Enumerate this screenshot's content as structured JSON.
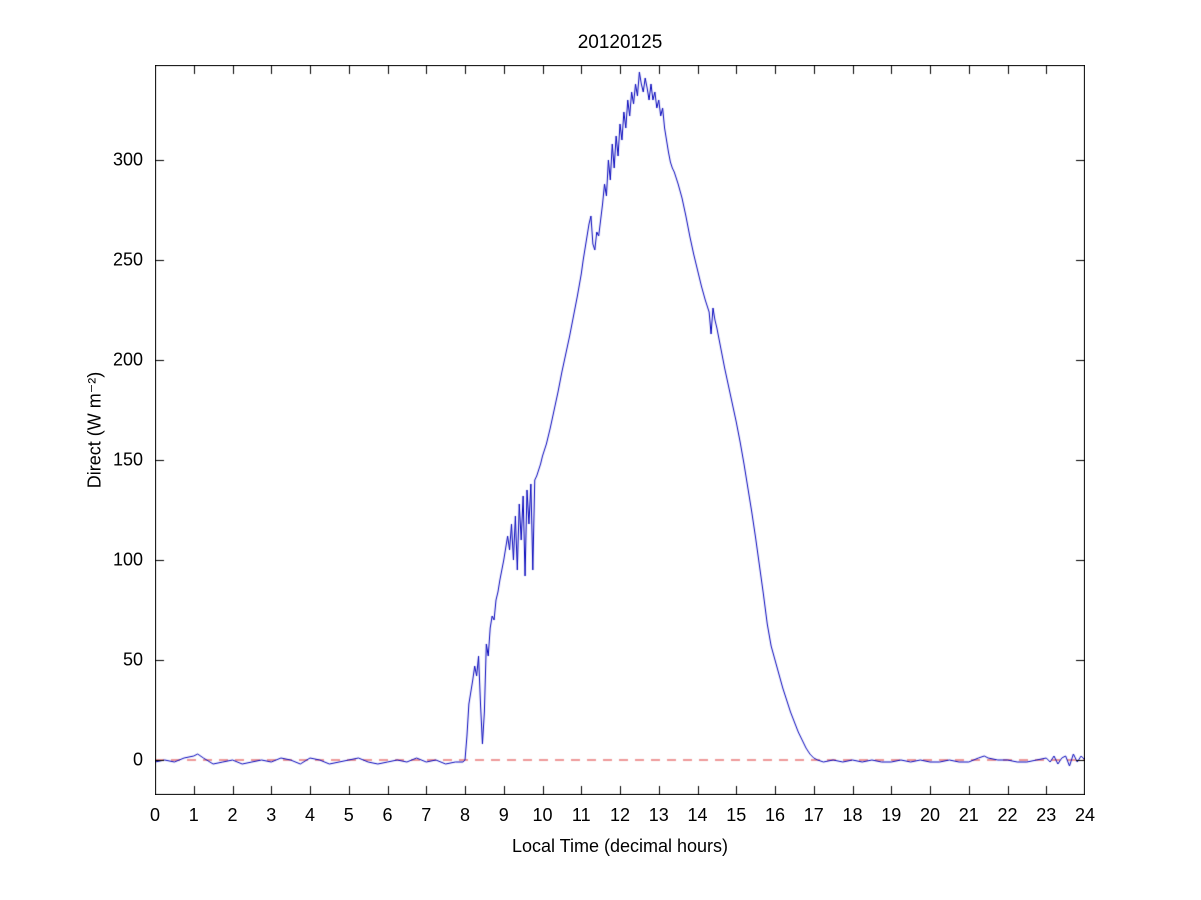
{
  "chart_data": {
    "type": "line",
    "title": "20120125",
    "xlabel": "Local Time (decimal hours)",
    "ylabel": "Direct (W m⁻²)",
    "xlim": [
      0,
      24
    ],
    "ylim": [
      -17.5,
      347.5
    ],
    "xticks": [
      0,
      1,
      2,
      3,
      4,
      5,
      6,
      7,
      8,
      9,
      10,
      11,
      12,
      13,
      14,
      15,
      16,
      17,
      18,
      19,
      20,
      21,
      22,
      23,
      24
    ],
    "yticks": [
      0,
      50,
      100,
      150,
      200,
      250,
      300
    ],
    "grid": false,
    "legend": "none",
    "background_color": "#ffffff",
    "axis_color": "#000000",
    "series": [
      {
        "name": "direct-irradiance",
        "color": "#0000bb",
        "line_style": "solid",
        "line_width": 1,
        "points": [
          [
            0,
            -1
          ],
          [
            0.25,
            0
          ],
          [
            0.5,
            -1
          ],
          [
            0.75,
            1
          ],
          [
            1,
            2
          ],
          [
            1.1,
            3
          ],
          [
            1.25,
            1
          ],
          [
            1.5,
            -2
          ],
          [
            1.75,
            -1
          ],
          [
            2,
            0
          ],
          [
            2.25,
            -2
          ],
          [
            2.5,
            -1
          ],
          [
            2.75,
            0
          ],
          [
            3,
            -1
          ],
          [
            3.25,
            1
          ],
          [
            3.5,
            0
          ],
          [
            3.75,
            -2
          ],
          [
            4,
            1
          ],
          [
            4.25,
            0
          ],
          [
            4.5,
            -2
          ],
          [
            4.75,
            -1
          ],
          [
            5,
            0
          ],
          [
            5.25,
            1
          ],
          [
            5.5,
            -1
          ],
          [
            5.75,
            -2
          ],
          [
            6,
            -1
          ],
          [
            6.25,
            0
          ],
          [
            6.5,
            -1
          ],
          [
            6.75,
            1
          ],
          [
            7,
            -1
          ],
          [
            7.25,
            0
          ],
          [
            7.5,
            -2
          ],
          [
            7.75,
            -1
          ],
          [
            7.95,
            -1
          ],
          [
            8.0,
            0
          ],
          [
            8.05,
            12
          ],
          [
            8.1,
            28
          ],
          [
            8.15,
            34
          ],
          [
            8.2,
            40
          ],
          [
            8.25,
            47
          ],
          [
            8.3,
            42
          ],
          [
            8.35,
            52
          ],
          [
            8.4,
            28
          ],
          [
            8.45,
            8
          ],
          [
            8.5,
            24
          ],
          [
            8.55,
            58
          ],
          [
            8.6,
            52
          ],
          [
            8.65,
            66
          ],
          [
            8.7,
            72
          ],
          [
            8.75,
            70
          ],
          [
            8.8,
            80
          ],
          [
            8.85,
            84
          ],
          [
            8.9,
            90
          ],
          [
            8.95,
            95
          ],
          [
            9,
            100
          ],
          [
            9.05,
            106
          ],
          [
            9.1,
            112
          ],
          [
            9.15,
            105
          ],
          [
            9.2,
            118
          ],
          [
            9.25,
            100
          ],
          [
            9.3,
            122
          ],
          [
            9.35,
            95
          ],
          [
            9.4,
            128
          ],
          [
            9.45,
            110
          ],
          [
            9.5,
            132
          ],
          [
            9.55,
            92
          ],
          [
            9.6,
            135
          ],
          [
            9.65,
            118
          ],
          [
            9.7,
            138
          ],
          [
            9.75,
            95
          ],
          [
            9.8,
            140
          ],
          [
            9.85,
            142
          ],
          [
            9.9,
            145
          ],
          [
            9.95,
            148
          ],
          [
            10,
            152
          ],
          [
            10.1,
            158
          ],
          [
            10.2,
            166
          ],
          [
            10.3,
            175
          ],
          [
            10.4,
            184
          ],
          [
            10.5,
            194
          ],
          [
            10.6,
            203
          ],
          [
            10.7,
            212
          ],
          [
            10.8,
            222
          ],
          [
            10.9,
            232
          ],
          [
            11,
            243
          ],
          [
            11.05,
            250
          ],
          [
            11.1,
            256
          ],
          [
            11.15,
            262
          ],
          [
            11.2,
            268
          ],
          [
            11.25,
            272
          ],
          [
            11.3,
            258
          ],
          [
            11.35,
            255
          ],
          [
            11.4,
            264
          ],
          [
            11.45,
            262
          ],
          [
            11.5,
            270
          ],
          [
            11.55,
            278
          ],
          [
            11.6,
            288
          ],
          [
            11.65,
            282
          ],
          [
            11.7,
            300
          ],
          [
            11.75,
            290
          ],
          [
            11.8,
            308
          ],
          [
            11.85,
            296
          ],
          [
            11.9,
            312
          ],
          [
            11.95,
            302
          ],
          [
            12,
            318
          ],
          [
            12.05,
            310
          ],
          [
            12.1,
            324
          ],
          [
            12.15,
            316
          ],
          [
            12.2,
            330
          ],
          [
            12.25,
            322
          ],
          [
            12.3,
            334
          ],
          [
            12.35,
            328
          ],
          [
            12.4,
            338
          ],
          [
            12.45,
            332
          ],
          [
            12.5,
            344
          ],
          [
            12.55,
            338
          ],
          [
            12.6,
            334
          ],
          [
            12.65,
            341
          ],
          [
            12.7,
            336
          ],
          [
            12.75,
            330
          ],
          [
            12.8,
            338
          ],
          [
            12.85,
            330
          ],
          [
            12.9,
            334
          ],
          [
            12.95,
            326
          ],
          [
            13,
            330
          ],
          [
            13.05,
            322
          ],
          [
            13.1,
            326
          ],
          [
            13.15,
            316
          ],
          [
            13.2,
            310
          ],
          [
            13.25,
            304
          ],
          [
            13.3,
            299
          ],
          [
            13.35,
            296
          ],
          [
            13.4,
            294
          ],
          [
            13.45,
            291
          ],
          [
            13.5,
            288
          ],
          [
            13.6,
            281
          ],
          [
            13.7,
            272
          ],
          [
            13.8,
            262
          ],
          [
            13.9,
            253
          ],
          [
            14,
            245
          ],
          [
            14.1,
            237
          ],
          [
            14.2,
            230
          ],
          [
            14.3,
            224
          ],
          [
            14.35,
            213
          ],
          [
            14.4,
            226
          ],
          [
            14.45,
            220
          ],
          [
            14.5,
            216
          ],
          [
            14.6,
            206
          ],
          [
            14.7,
            196
          ],
          [
            14.8,
            187
          ],
          [
            14.9,
            178
          ],
          [
            15,
            169
          ],
          [
            15.1,
            159
          ],
          [
            15.2,
            148
          ],
          [
            15.3,
            136
          ],
          [
            15.4,
            124
          ],
          [
            15.5,
            111
          ],
          [
            15.6,
            97
          ],
          [
            15.7,
            83
          ],
          [
            15.8,
            68
          ],
          [
            15.9,
            57
          ],
          [
            16,
            50
          ],
          [
            16.1,
            43
          ],
          [
            16.2,
            36
          ],
          [
            16.3,
            30
          ],
          [
            16.4,
            24
          ],
          [
            16.5,
            19
          ],
          [
            16.6,
            14
          ],
          [
            16.7,
            10
          ],
          [
            16.8,
            6
          ],
          [
            16.9,
            3
          ],
          [
            17,
            1
          ],
          [
            17.1,
            0
          ],
          [
            17.25,
            -1
          ],
          [
            17.5,
            0
          ],
          [
            17.75,
            -1
          ],
          [
            18,
            0
          ],
          [
            18.25,
            -1
          ],
          [
            18.5,
            0
          ],
          [
            18.75,
            -1
          ],
          [
            19,
            -1
          ],
          [
            19.25,
            0
          ],
          [
            19.5,
            -1
          ],
          [
            19.75,
            0
          ],
          [
            20,
            -1
          ],
          [
            20.25,
            -1
          ],
          [
            20.5,
            0
          ],
          [
            20.75,
            -1
          ],
          [
            21,
            -1
          ],
          [
            21.25,
            1
          ],
          [
            21.4,
            2
          ],
          [
            21.5,
            1
          ],
          [
            21.75,
            0
          ],
          [
            22,
            0
          ],
          [
            22.25,
            -1
          ],
          [
            22.5,
            -1
          ],
          [
            22.75,
            0
          ],
          [
            23,
            1
          ],
          [
            23.1,
            -1
          ],
          [
            23.2,
            2
          ],
          [
            23.3,
            -2
          ],
          [
            23.4,
            1
          ],
          [
            23.5,
            2
          ],
          [
            23.6,
            -3
          ],
          [
            23.7,
            3
          ],
          [
            23.8,
            -1
          ],
          [
            23.9,
            2
          ],
          [
            24,
            0
          ]
        ]
      },
      {
        "name": "zero-baseline",
        "color": "#dd3333",
        "line_style": "dashed",
        "line_width": 1,
        "points": [
          [
            0,
            0
          ],
          [
            24,
            0
          ]
        ]
      }
    ]
  }
}
